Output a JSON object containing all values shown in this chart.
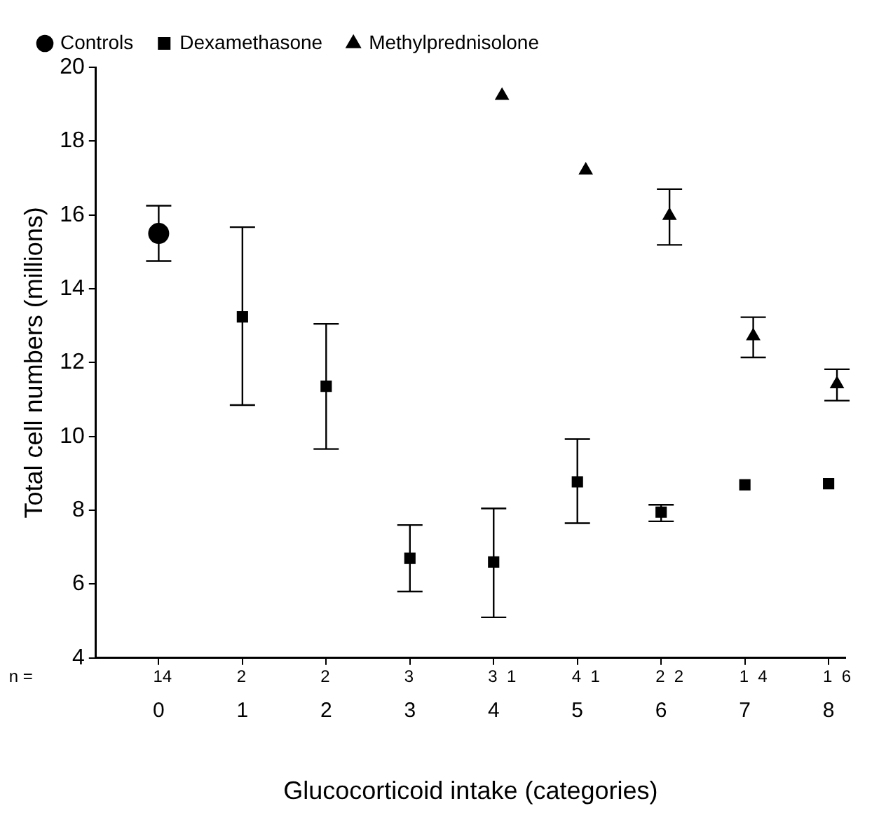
{
  "chart_data": {
    "type": "scatter",
    "xlabel": "Glucocorticoid intake (categories)",
    "ylabel": "Total cell numbers (millions)",
    "xlim": [
      -0.75,
      8.2
    ],
    "xticks": [
      0,
      1,
      2,
      3,
      4,
      5,
      6,
      7,
      8
    ],
    "ylim": [
      4,
      20
    ],
    "yticks": [
      4,
      6,
      8,
      10,
      12,
      14,
      16,
      18,
      20
    ],
    "grid": false,
    "legend": "top left",
    "annotations": [
      "n =",
      "14",
      "2",
      "2",
      "3",
      "3  1",
      "4  1",
      "2  2",
      "1  4",
      "1  6"
    ],
    "series": [
      {
        "name": "Controls",
        "color": "#000000",
        "marker": "circle",
        "x": [
          0
        ],
        "values": [
          15.5
        ],
        "errors": [
          [
            14.75,
            16.25
          ]
        ]
      },
      {
        "name": "Dexamethasone",
        "color": "#000000",
        "marker": "square",
        "x": [
          1,
          2,
          3,
          4,
          5,
          6,
          7,
          8
        ],
        "values": [
          13.24,
          11.36,
          6.7,
          6.6,
          8.77,
          7.95,
          8.69,
          8.72
        ],
        "errors": [
          [
            10.85,
            15.67
          ],
          [
            9.66,
            13.05
          ],
          [
            5.8,
            7.6
          ],
          [
            5.1,
            8.05
          ],
          [
            7.65,
            9.93
          ],
          [
            7.7,
            8.15
          ],
          null,
          null
        ]
      },
      {
        "name": "Methylprednisolone",
        "color": "#000000",
        "marker": "triangle",
        "x": [
          4.1,
          5.1,
          6.1,
          7.1,
          8.1
        ],
        "values": [
          19.23,
          17.21,
          15.98,
          12.72,
          11.42
        ],
        "errors": [
          null,
          null,
          [
            15.19,
            16.7
          ],
          [
            12.14,
            13.23
          ],
          [
            10.97,
            11.82
          ]
        ]
      }
    ]
  }
}
